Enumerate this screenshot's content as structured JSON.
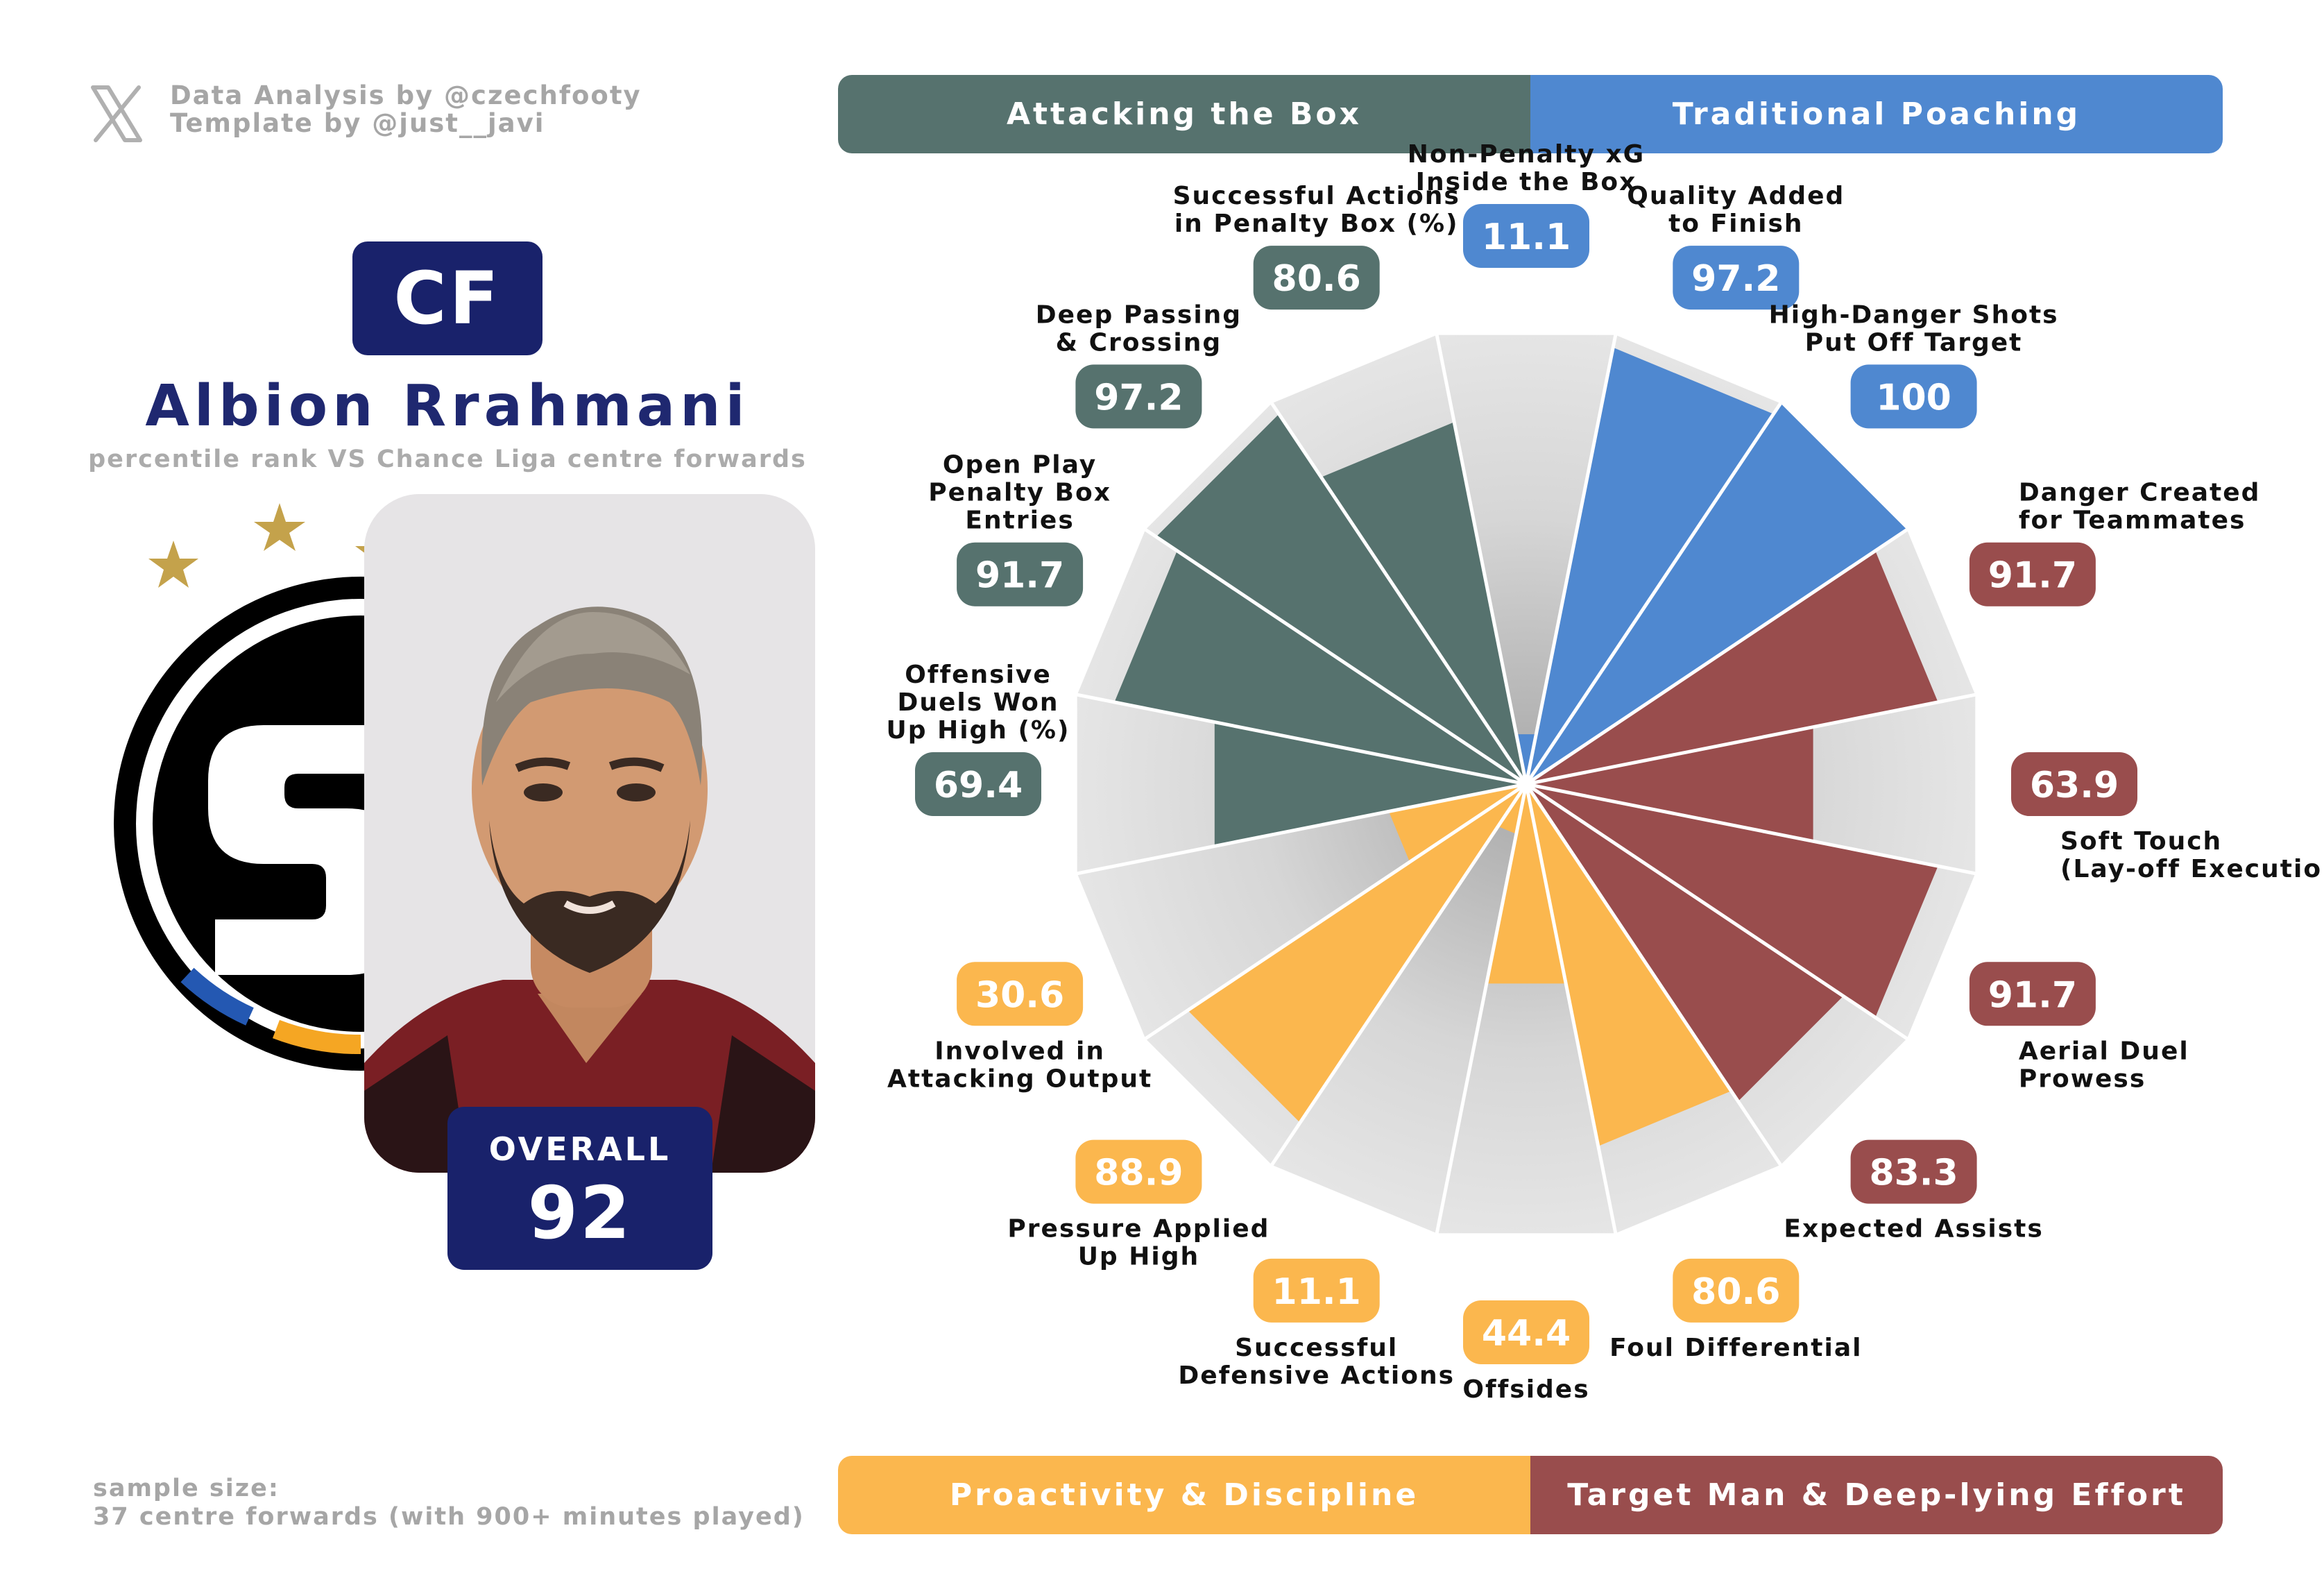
{
  "credits": {
    "line1": "Data Analysis by @czechfooty",
    "line2": "Template by @just__javi"
  },
  "player": {
    "position": "CF",
    "name": "Albion Rrahmani",
    "subtitle": "percentile rank VS Chance Liga centre forwards",
    "overall_label": "OVERALL",
    "overall_value": "92"
  },
  "footer": {
    "line1": "sample size:",
    "line2": "37 centre forwards (with 900+ minutes played)"
  },
  "categories": {
    "attacking": "Attacking the Box",
    "poaching": "Traditional Poaching",
    "proactivity": "Proactivity & Discipline",
    "target_man": "Target Man & Deep-lying Effort"
  },
  "colors": {
    "attacking": "#56726e",
    "poaching": "#4f88d0",
    "proactivity": "#fbb74e",
    "target_man": "#994d4d",
    "navy": "#19226b"
  },
  "chart_data": {
    "type": "radar",
    "scale": [
      0,
      100
    ],
    "metrics": [
      {
        "label": [
          "Non-Penalty xG",
          "Inside the Box"
        ],
        "value": 11.1,
        "group": "poaching"
      },
      {
        "label": [
          "Quality Added",
          "to Finish"
        ],
        "value": 97.2,
        "group": "poaching"
      },
      {
        "label": [
          "High-Danger Shots",
          "Put Off Target"
        ],
        "value": 100,
        "group": "poaching"
      },
      {
        "label": [
          "Danger Created",
          "for Teammates"
        ],
        "value": 91.7,
        "group": "target_man"
      },
      {
        "label": [
          "Soft Touch",
          "(Lay-off Execution)"
        ],
        "value": 63.9,
        "group": "target_man"
      },
      {
        "label": [
          "Aerial Duel",
          "Prowess"
        ],
        "value": 91.7,
        "group": "target_man"
      },
      {
        "label": [
          "Expected Assists"
        ],
        "value": 83.3,
        "group": "target_man"
      },
      {
        "label": [
          "Foul Differential"
        ],
        "value": 80.6,
        "group": "proactivity"
      },
      {
        "label": [
          "Offsides"
        ],
        "value": 44.4,
        "group": "proactivity"
      },
      {
        "label": [
          "Successful",
          "Defensive Actions"
        ],
        "value": 11.1,
        "group": "proactivity"
      },
      {
        "label": [
          "Pressure Applied",
          "Up High"
        ],
        "value": 88.9,
        "group": "proactivity"
      },
      {
        "label": [
          "Involved in",
          "Attacking Output"
        ],
        "value": 30.6,
        "group": "proactivity"
      },
      {
        "label": [
          "Offensive",
          "Duels Won",
          "Up High (%)"
        ],
        "value": 69.4,
        "group": "attacking"
      },
      {
        "label": [
          "Open Play",
          "Penalty Box",
          "Entries"
        ],
        "value": 91.7,
        "group": "attacking"
      },
      {
        "label": [
          "Deep Passing",
          "& Crossing"
        ],
        "value": 97.2,
        "group": "attacking"
      },
      {
        "label": [
          "Successful Actions",
          "in Penalty Box (%)"
        ],
        "value": 80.6,
        "group": "attacking"
      }
    ]
  }
}
